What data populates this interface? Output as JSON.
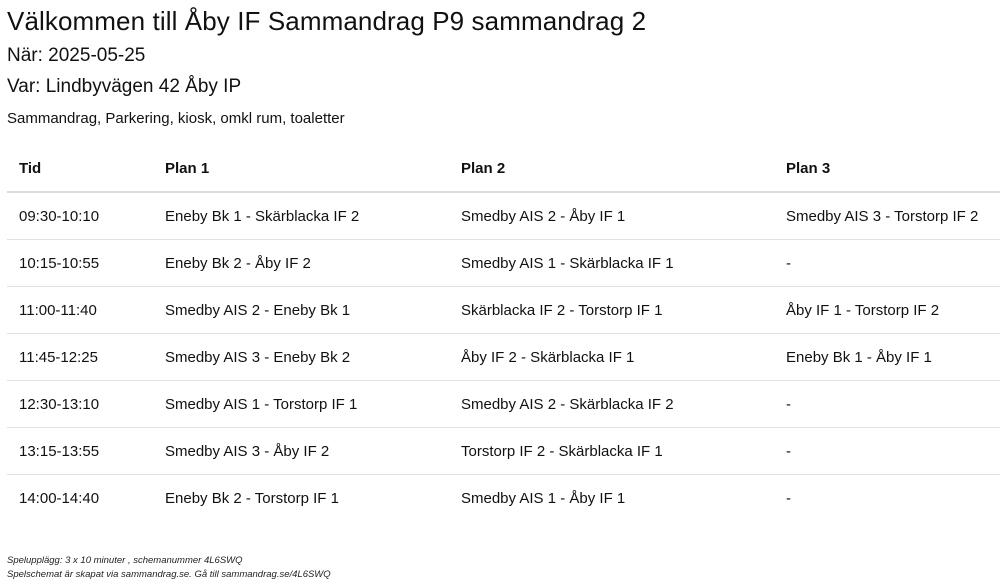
{
  "header": {
    "title": "Välkommen till Åby IF Sammandrag P9 sammandrag 2",
    "when": "När: 2025-05-25",
    "where": "Var: Lindbyvägen 42 Åby IP",
    "description": "Sammandrag, Parkering, kiosk, omkl rum, toaletter"
  },
  "schedule": {
    "columns": [
      "Tid",
      "Plan 1",
      "Plan 2",
      "Plan 3"
    ],
    "rows": [
      [
        "09:30-10:10",
        "Eneby Bk 1 - Skärblacka IF 2",
        "Smedby AIS 2 - Åby IF 1",
        "Smedby AIS 3 - Torstorp IF 2"
      ],
      [
        "10:15-10:55",
        "Eneby Bk 2 - Åby IF 2",
        "Smedby AIS 1 - Skärblacka IF 1",
        "-"
      ],
      [
        "11:00-11:40",
        "Smedby AIS 2 - Eneby Bk 1",
        "Skärblacka IF 2 - Torstorp IF 1",
        "Åby IF 1 - Torstorp IF 2"
      ],
      [
        "11:45-12:25",
        "Smedby AIS 3 - Eneby Bk 2",
        "Åby IF 2 - Skärblacka IF 1",
        "Eneby Bk 1 - Åby IF 1"
      ],
      [
        "12:30-13:10",
        "Smedby AIS 1 - Torstorp IF 1",
        "Smedby AIS 2 - Skärblacka IF 2",
        "-"
      ],
      [
        "13:15-13:55",
        "Smedby AIS 3 - Åby IF 2",
        "Torstorp IF 2 - Skärblacka IF 1",
        "-"
      ],
      [
        "14:00-14:40",
        "Eneby Bk 2 - Torstorp IF 1",
        "Smedby AIS 1 - Åby IF 1",
        "-"
      ]
    ]
  },
  "footer": {
    "line1": "Spelupplägg: 3 x 10 minuter , schemanummer 4L6SWQ",
    "line2": "Spelschemat är skapat via sammandrag.se. Gå till sammandrag.se/4L6SWQ"
  }
}
